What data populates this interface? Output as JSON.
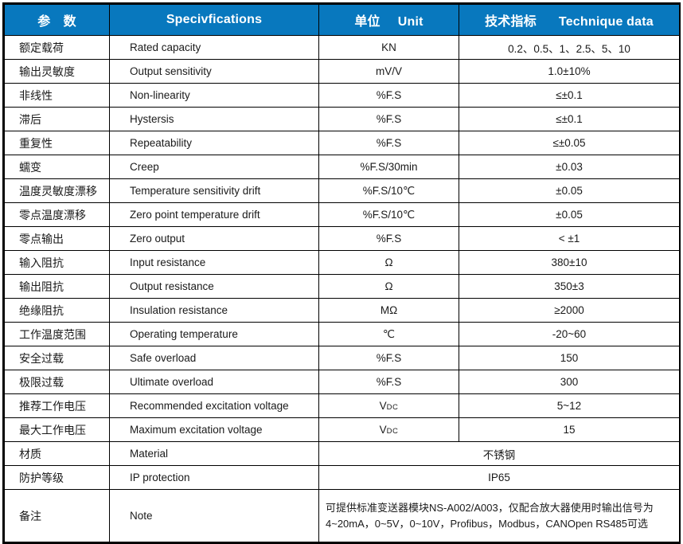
{
  "table": {
    "header": {
      "param_zh": "参　数",
      "spec_en": "Specivfications",
      "unit_zh": "单位",
      "unit_en": "Unit",
      "tech_zh": "技术指标",
      "tech_en": "Technique data"
    },
    "rows": [
      {
        "param": "额定载荷",
        "spec": "Rated capacity",
        "unit": "KN",
        "value": "0.2、0.5、1、2.5、5、10"
      },
      {
        "param": "输出灵敏度",
        "spec": "Output sensitivity",
        "unit": "mV/V",
        "value": "1.0±10%"
      },
      {
        "param": "非线性",
        "spec": "Non-linearity",
        "unit": "%F.S",
        "value": "≤±0.1"
      },
      {
        "param": "滞后",
        "spec": "Hystersis",
        "unit": "%F.S",
        "value": "≤±0.1"
      },
      {
        "param": "重复性",
        "spec": "Repeatability",
        "unit": "%F.S",
        "value": "≤±0.05"
      },
      {
        "param": "蠕变",
        "spec": "Creep",
        "unit": "%F.S/30min",
        "value": "±0.03"
      },
      {
        "param": "温度灵敏度漂移",
        "spec": "Temperature sensitivity drift",
        "unit": "%F.S/10℃",
        "value": "±0.05"
      },
      {
        "param": "零点温度漂移",
        "spec": "Zero point temperature drift",
        "unit": "%F.S/10℃",
        "value": "±0.05"
      },
      {
        "param": "零点输出",
        "spec": "Zero output",
        "unit": "%F.S",
        "value": "< ±1"
      },
      {
        "param": "输入阻抗",
        "spec": "Input resistance",
        "unit": "Ω",
        "value": "380±10"
      },
      {
        "param": "输出阻抗",
        "spec": "Output resistance",
        "unit": "Ω",
        "value": "350±3"
      },
      {
        "param": "绝缘阻抗",
        "spec": "Insulation resistance",
        "unit": "MΩ",
        "value": "≥2000"
      },
      {
        "param": "工作温度范围",
        "spec": "Operating temperature",
        "unit": "℃",
        "value": "-20~60"
      },
      {
        "param": "安全过载",
        "spec": "Safe overload",
        "unit": "%F.S",
        "value": "150"
      },
      {
        "param": "极限过载",
        "spec": "Ultimate overload",
        "unit": "%F.S",
        "value": "300"
      },
      {
        "param": "推荐工作电压",
        "spec": "Recommended excitation voltage",
        "unit": "V",
        "unit_sub": "DC",
        "value": "5~12"
      },
      {
        "param": "最大工作电压",
        "spec": "Maximum excitation voltage",
        "unit": "V",
        "unit_sub": "DC",
        "value": "15"
      },
      {
        "param": "材质",
        "spec": "Material",
        "merged_value": "不锈钢"
      },
      {
        "param": "防护等级",
        "spec": "IP protection",
        "merged_value": "IP65"
      },
      {
        "param": "备注",
        "spec": "Note",
        "note_lines": [
          "可提供标准变送器模块NS-A002/A003，仅配合放大器使用时输出信号为",
          "4~20mA，0~5V，0~10V，Profibus，Modbus，CANOpen RS485可选"
        ]
      }
    ],
    "colors": {
      "header_bg": "#0878be",
      "header_text": "#ffffff",
      "border": "#000000",
      "row_bg": "#ffffff",
      "text": "#1a1a1a"
    }
  }
}
